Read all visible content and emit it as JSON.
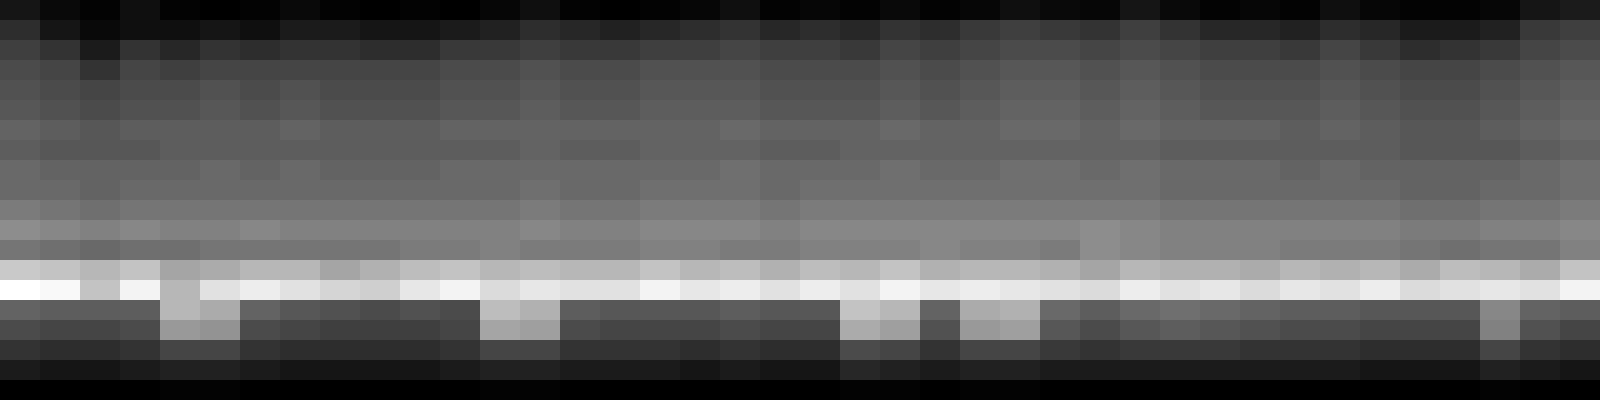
{
  "chart_data": {
    "type": "heatmap",
    "tick_labels": false,
    "cells": [
      [
        12,
        8,
        6,
        10,
        6,
        5,
        6,
        8,
        6,
        5,
        6,
        5,
        7,
        10,
        6,
        5,
        6,
        7,
        10,
        6,
        7,
        6,
        8,
        6,
        7,
        10,
        8,
        7,
        12,
        8,
        6,
        7,
        6,
        10,
        7,
        6,
        6,
        7,
        12,
        14
      ],
      [
        20,
        12,
        8,
        10,
        10,
        12,
        10,
        14,
        14,
        12,
        12,
        14,
        16,
        20,
        18,
        16,
        18,
        20,
        22,
        18,
        20,
        18,
        22,
        20,
        24,
        26,
        24,
        22,
        26,
        22,
        18,
        18,
        16,
        20,
        18,
        14,
        14,
        16,
        24,
        26
      ],
      [
        26,
        22,
        14,
        22,
        18,
        22,
        20,
        22,
        22,
        20,
        20,
        24,
        24,
        26,
        24,
        24,
        26,
        26,
        28,
        26,
        26,
        24,
        28,
        26,
        28,
        30,
        30,
        28,
        30,
        28,
        26,
        26,
        24,
        28,
        24,
        20,
        22,
        24,
        28,
        30
      ],
      [
        30,
        28,
        22,
        28,
        26,
        28,
        28,
        28,
        28,
        28,
        28,
        30,
        30,
        32,
        30,
        30,
        32,
        32,
        32,
        30,
        30,
        30,
        32,
        30,
        32,
        34,
        34,
        32,
        34,
        32,
        30,
        30,
        30,
        32,
        30,
        28,
        28,
        30,
        32,
        34
      ],
      [
        32,
        30,
        28,
        30,
        30,
        32,
        30,
        32,
        30,
        30,
        30,
        32,
        32,
        34,
        32,
        32,
        34,
        34,
        34,
        32,
        32,
        32,
        34,
        32,
        34,
        36,
        36,
        34,
        36,
        34,
        32,
        32,
        32,
        34,
        32,
        30,
        30,
        32,
        34,
        36
      ],
      [
        34,
        32,
        30,
        32,
        32,
        34,
        32,
        34,
        32,
        32,
        32,
        34,
        34,
        36,
        34,
        34,
        36,
        36,
        36,
        34,
        34,
        34,
        36,
        34,
        36,
        38,
        38,
        36,
        38,
        36,
        34,
        34,
        34,
        36,
        34,
        32,
        32,
        34,
        36,
        38
      ],
      [
        38,
        36,
        34,
        36,
        36,
        36,
        36,
        38,
        36,
        36,
        36,
        38,
        38,
        38,
        38,
        38,
        38,
        38,
        40,
        38,
        38,
        38,
        40,
        38,
        38,
        40,
        40,
        38,
        40,
        38,
        38,
        38,
        36,
        38,
        36,
        34,
        34,
        36,
        38,
        40
      ],
      [
        36,
        34,
        34,
        34,
        36,
        36,
        36,
        36,
        36,
        36,
        36,
        36,
        36,
        38,
        36,
        36,
        38,
        38,
        38,
        36,
        36,
        38,
        38,
        38,
        38,
        38,
        38,
        38,
        38,
        36,
        36,
        36,
        36,
        36,
        36,
        34,
        34,
        34,
        36,
        38
      ],
      [
        40,
        38,
        38,
        38,
        38,
        40,
        38,
        40,
        38,
        38,
        38,
        40,
        40,
        40,
        40,
        40,
        40,
        40,
        42,
        40,
        40,
        40,
        42,
        40,
        40,
        42,
        42,
        40,
        42,
        40,
        40,
        40,
        38,
        40,
        38,
        38,
        38,
        38,
        40,
        42
      ],
      [
        40,
        40,
        38,
        40,
        40,
        40,
        40,
        40,
        40,
        40,
        40,
        40,
        40,
        42,
        40,
        40,
        42,
        42,
        42,
        40,
        42,
        42,
        42,
        42,
        42,
        42,
        42,
        42,
        42,
        40,
        40,
        40,
        40,
        40,
        40,
        38,
        38,
        40,
        40,
        42
      ],
      [
        46,
        44,
        42,
        44,
        44,
        44,
        44,
        44,
        44,
        44,
        44,
        44,
        44,
        46,
        44,
        44,
        46,
        46,
        46,
        44,
        46,
        46,
        46,
        46,
        46,
        46,
        46,
        46,
        46,
        44,
        44,
        44,
        44,
        44,
        44,
        42,
        42,
        44,
        44,
        46
      ],
      [
        52,
        50,
        48,
        50,
        48,
        48,
        50,
        48,
        48,
        48,
        48,
        48,
        48,
        50,
        48,
        48,
        50,
        50,
        50,
        48,
        50,
        50,
        50,
        50,
        50,
        50,
        50,
        52,
        50,
        48,
        48,
        48,
        48,
        48,
        48,
        46,
        46,
        48,
        48,
        50
      ],
      [
        44,
        42,
        40,
        42,
        42,
        44,
        44,
        44,
        44,
        44,
        46,
        46,
        48,
        46,
        46,
        46,
        48,
        48,
        46,
        46,
        48,
        48,
        48,
        50,
        48,
        48,
        46,
        52,
        50,
        48,
        48,
        48,
        46,
        46,
        46,
        44,
        42,
        44,
        44,
        48
      ],
      [
        72,
        70,
        66,
        70,
        60,
        62,
        66,
        66,
        60,
        64,
        68,
        70,
        66,
        68,
        66,
        66,
        70,
        66,
        68,
        64,
        68,
        66,
        70,
        64,
        66,
        66,
        64,
        60,
        66,
        64,
        64,
        62,
        66,
        64,
        66,
        62,
        68,
        66,
        62,
        70
      ],
      [
        90,
        88,
        70,
        86,
        66,
        80,
        84,
        80,
        76,
        74,
        82,
        86,
        78,
        82,
        80,
        80,
        86,
        82,
        84,
        80,
        84,
        80,
        86,
        82,
        84,
        82,
        80,
        78,
        84,
        80,
        82,
        78,
        82,
        80,
        84,
        78,
        80,
        82,
        80,
        86
      ],
      [
        38,
        36,
        36,
        36,
        66,
        62,
        38,
        34,
        32,
        30,
        32,
        30,
        68,
        64,
        36,
        34,
        34,
        34,
        36,
        34,
        34,
        70,
        66,
        38,
        62,
        64,
        40,
        36,
        40,
        42,
        40,
        38,
        36,
        36,
        34,
        34,
        34,
        50,
        38,
        36
      ],
      [
        30,
        28,
        28,
        30,
        56,
        54,
        30,
        28,
        26,
        26,
        26,
        28,
        60,
        58,
        30,
        28,
        28,
        28,
        30,
        28,
        28,
        62,
        58,
        32,
        56,
        58,
        34,
        30,
        34,
        36,
        34,
        32,
        30,
        30,
        28,
        28,
        28,
        48,
        32,
        28
      ],
      [
        22,
        20,
        20,
        22,
        28,
        28,
        22,
        20,
        20,
        20,
        20,
        22,
        28,
        28,
        22,
        22,
        22,
        20,
        22,
        20,
        20,
        30,
        28,
        22,
        28,
        28,
        24,
        22,
        24,
        24,
        24,
        22,
        22,
        22,
        20,
        20,
        20,
        28,
        22,
        20
      ],
      [
        14,
        12,
        12,
        14,
        16,
        16,
        14,
        12,
        12,
        12,
        12,
        14,
        16,
        16,
        14,
        14,
        14,
        12,
        14,
        12,
        12,
        18,
        16,
        14,
        16,
        16,
        14,
        14,
        14,
        14,
        14,
        14,
        14,
        14,
        12,
        12,
        12,
        16,
        14,
        12
      ],
      [
        5,
        5,
        5,
        5,
        6,
        6,
        5,
        5,
        5,
        5,
        5,
        5,
        6,
        6,
        5,
        5,
        5,
        5,
        5,
        5,
        5,
        6,
        6,
        5,
        6,
        6,
        5,
        5,
        5,
        5,
        5,
        5,
        5,
        5,
        5,
        5,
        5,
        6,
        5,
        5
      ]
    ]
  }
}
